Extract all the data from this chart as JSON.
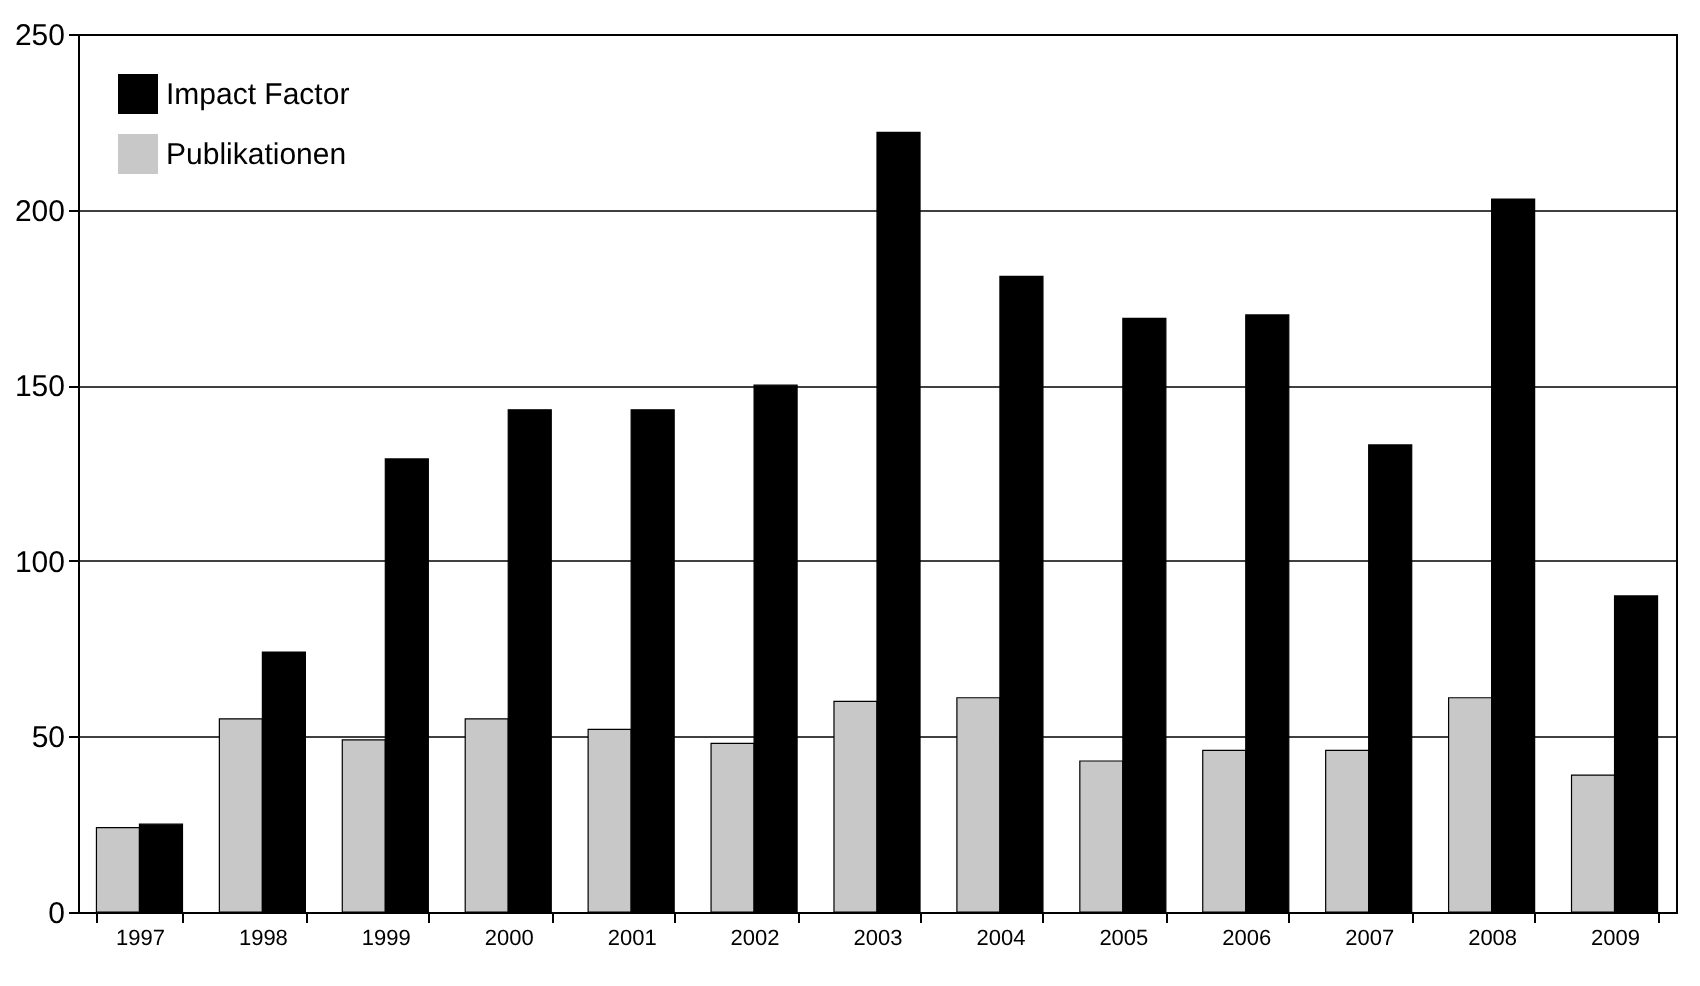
{
  "chart_data": {
    "type": "bar",
    "categories": [
      "1997",
      "1998",
      "1999",
      "2000",
      "2001",
      "2002",
      "2003",
      "2004",
      "2005",
      "2006",
      "2007",
      "2008",
      "2009"
    ],
    "series": [
      {
        "name": "Publikationen",
        "color": "#c8c8c8",
        "values": [
          24,
          55,
          49,
          55,
          52,
          48,
          60,
          61,
          43,
          46,
          46,
          61,
          39
        ]
      },
      {
        "name": "Impact Factor",
        "color": "#000000",
        "values": [
          25,
          74,
          129,
          143,
          143,
          150,
          222,
          181,
          169,
          170,
          133,
          203,
          90
        ]
      }
    ],
    "ylim": [
      0,
      250
    ],
    "yticks": [
      0,
      50,
      100,
      150,
      200,
      250
    ],
    "grid": "y",
    "legend": "top left"
  }
}
